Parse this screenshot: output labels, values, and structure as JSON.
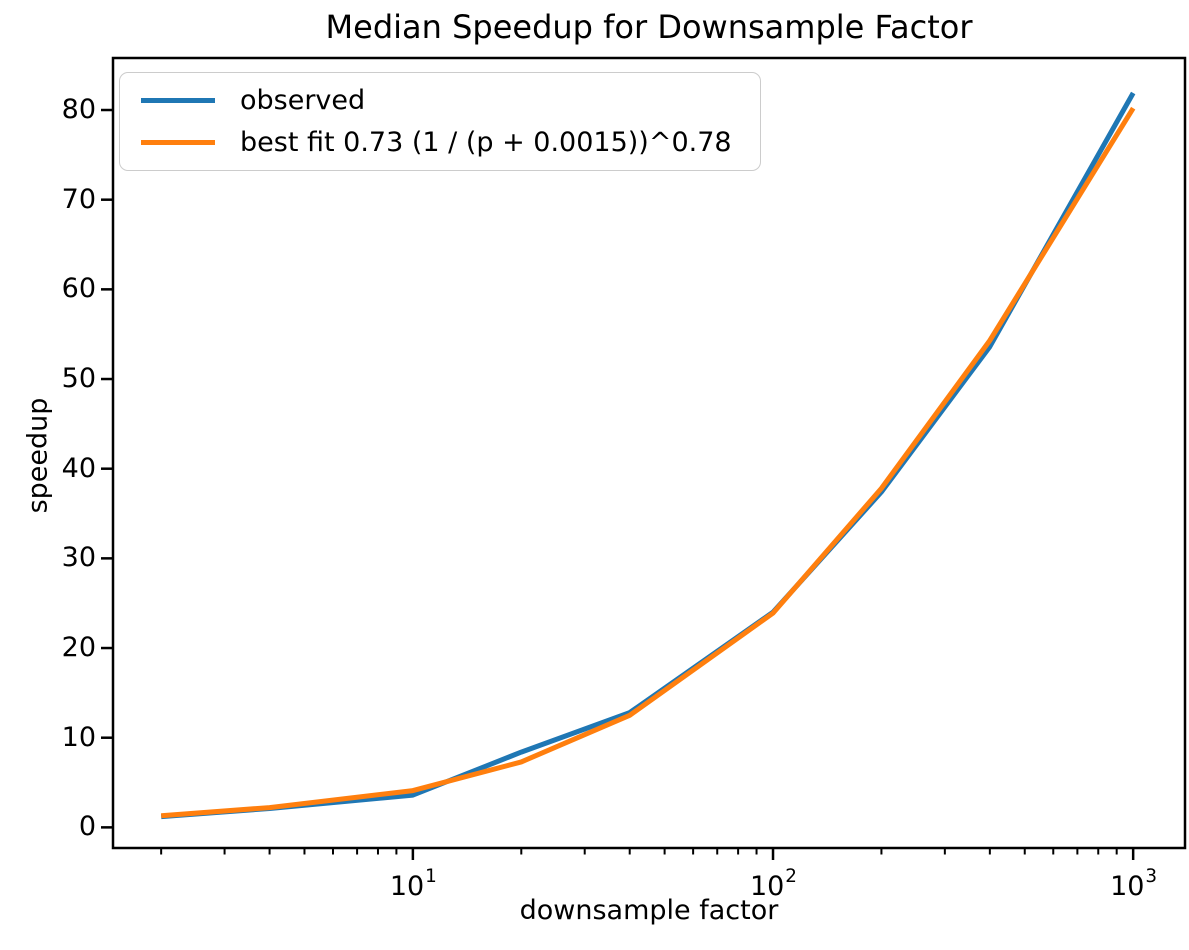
{
  "chart_data": {
    "type": "line",
    "title": "Median Speedup for Downsample Factor",
    "xlabel": "downsample factor",
    "ylabel": "speedup",
    "x_scale": "log",
    "grid": false,
    "legend_position": "upper left",
    "x": [
      2,
      4,
      10,
      20,
      40,
      100,
      200,
      400,
      1000
    ],
    "series": [
      {
        "name": "observed",
        "color": "#1f77b4",
        "values": [
          1.2,
          2.1,
          3.6,
          8.4,
          12.8,
          24.0,
          37.4,
          53.6,
          81.9
        ]
      },
      {
        "name": "best fit 0.73 (1 / (p + 0.0015))^0.78",
        "color": "#ff7f0e",
        "values": [
          1.3,
          2.2,
          4.1,
          7.3,
          12.5,
          23.9,
          37.8,
          54.3,
          80.2
        ]
      }
    ],
    "xlim": [
      1.47,
      1393
    ],
    "ylim": [
      -2.3,
      85.8
    ],
    "y_ticks": [
      0,
      10,
      20,
      30,
      40,
      50,
      60,
      70,
      80
    ],
    "x_major_ticks": [
      {
        "value": 10,
        "base": "10",
        "exp": "1"
      },
      {
        "value": 100,
        "base": "10",
        "exp": "2"
      },
      {
        "value": 1000,
        "base": "10",
        "exp": "3"
      }
    ],
    "x_minor_subs": [
      2,
      3,
      4,
      5,
      6,
      7,
      8,
      9
    ]
  }
}
